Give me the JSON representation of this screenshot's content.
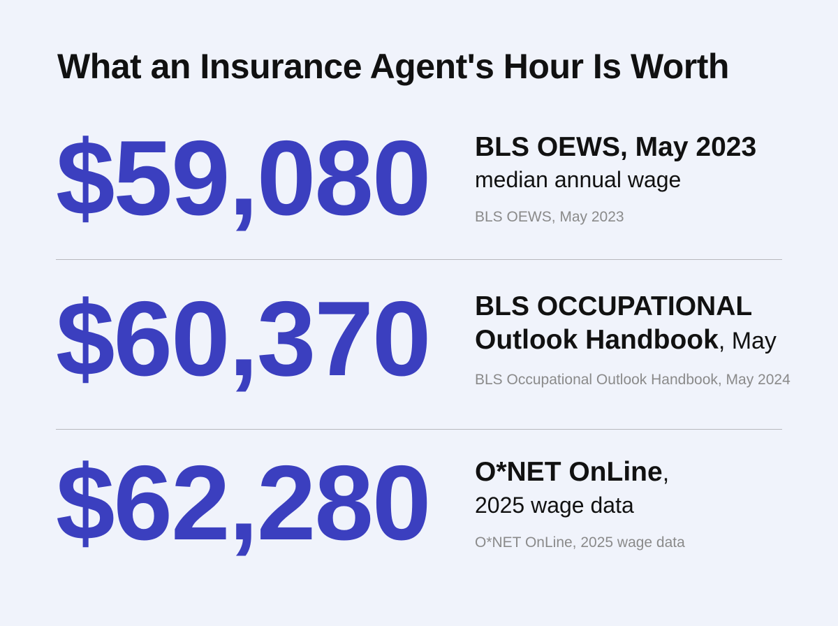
{
  "title": "What an Insurance Agent's Hour Is Worth",
  "stats": [
    {
      "value": "$59,080",
      "heading": [
        "BLS OEWS, May 2023"
      ],
      "detail": "median annual wage",
      "source": "BLS OEWS, May 2023"
    },
    {
      "value": "$60,370",
      "heading": [
        "BLS OCCUPATIONAL",
        "Outlook Handbook"
      ],
      "heading_suffix": ", May",
      "source": "BLS Occupational Outlook Handbook, May 2024"
    },
    {
      "value": "$62,280",
      "heading": [
        "O*NET OnLine"
      ],
      "heading_suffix": ",",
      "detail": "2025 wage data",
      "source": "O*NET OnLine, 2025 wage data"
    }
  ]
}
